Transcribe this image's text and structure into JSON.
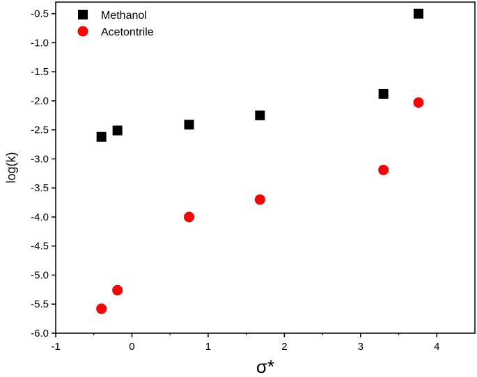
{
  "chart_data": {
    "type": "scatter",
    "title": "",
    "xlabel": "σ*",
    "ylabel": "log(k)",
    "xlim": [
      -1,
      4.5
    ],
    "ylim": [
      -6.0,
      -0.3
    ],
    "xticks": [
      -1,
      0,
      1,
      2,
      3,
      4
    ],
    "yticks": [
      -6.0,
      -5.5,
      -5.0,
      -4.5,
      -4.0,
      -3.5,
      -3.0,
      -2.5,
      -2.0,
      -1.5,
      -1.0,
      -0.5
    ],
    "xtick_labels": [
      "-1",
      "0",
      "1",
      "2",
      "3",
      "4"
    ],
    "ytick_labels": [
      "-6.0",
      "-5.5",
      "-5.0",
      "-4.5",
      "-4.0",
      "-3.5",
      "-3.0",
      "-2.5",
      "-2.0",
      "-1.5",
      "-1.0",
      "-0.5"
    ],
    "grid": false,
    "legend_position": "top-left",
    "series": [
      {
        "name": "Methanol",
        "marker": "square",
        "color": "#000000",
        "x": [
          -0.4,
          -0.19,
          0.75,
          1.68,
          3.3,
          3.76
        ],
        "y": [
          -2.62,
          -2.51,
          -2.41,
          -2.25,
          -1.88,
          -0.5
        ]
      },
      {
        "name": "Acetontrile",
        "marker": "circle",
        "color": "#ff0000",
        "x": [
          -0.4,
          -0.19,
          0.75,
          1.68,
          3.3,
          3.76
        ],
        "y": [
          -5.58,
          -5.26,
          -4.0,
          -3.7,
          -3.19,
          -2.03
        ]
      }
    ]
  }
}
